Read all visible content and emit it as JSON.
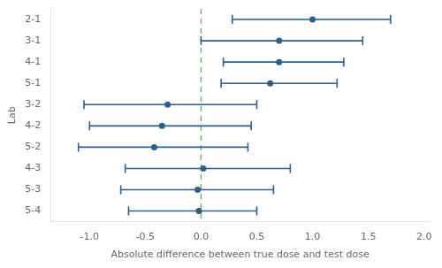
{
  "chart_data": {
    "type": "forest",
    "orientation": "horizontal",
    "categories": [
      "2-1",
      "3-1",
      "4-1",
      "5-1",
      "3-2",
      "4-2",
      "5-2",
      "4-3",
      "5-3",
      "5-4"
    ],
    "values": [
      1.0,
      0.7,
      0.7,
      0.62,
      -0.3,
      -0.35,
      -0.42,
      0.02,
      -0.03,
      -0.02
    ],
    "ci_low": [
      0.28,
      0.0,
      0.2,
      0.18,
      -1.05,
      -1.0,
      -1.1,
      -0.68,
      -0.72,
      -0.65
    ],
    "ci_high": [
      1.7,
      1.45,
      1.28,
      1.22,
      0.5,
      0.45,
      0.42,
      0.8,
      0.65,
      0.5
    ],
    "color": "#2A5F8F",
    "xlabel": "Absolute difference between true dose and test dose",
    "ylabel": "Lab",
    "xlim": [
      -1.35,
      2.05
    ],
    "xticks": [
      {
        "value": -1.0,
        "label": "-1.0"
      },
      -0.5,
      {
        "value": 0,
        "label": "0.0"
      },
      0.5,
      {
        "value": 1,
        "label": "1.0"
      },
      1.5,
      {
        "value": 2,
        "label": "2.0"
      }
    ],
    "grid": false,
    "reference_lines": [
      {
        "x": 0,
        "color": "#5BA85A",
        "line_style": "dashed"
      }
    ]
  }
}
